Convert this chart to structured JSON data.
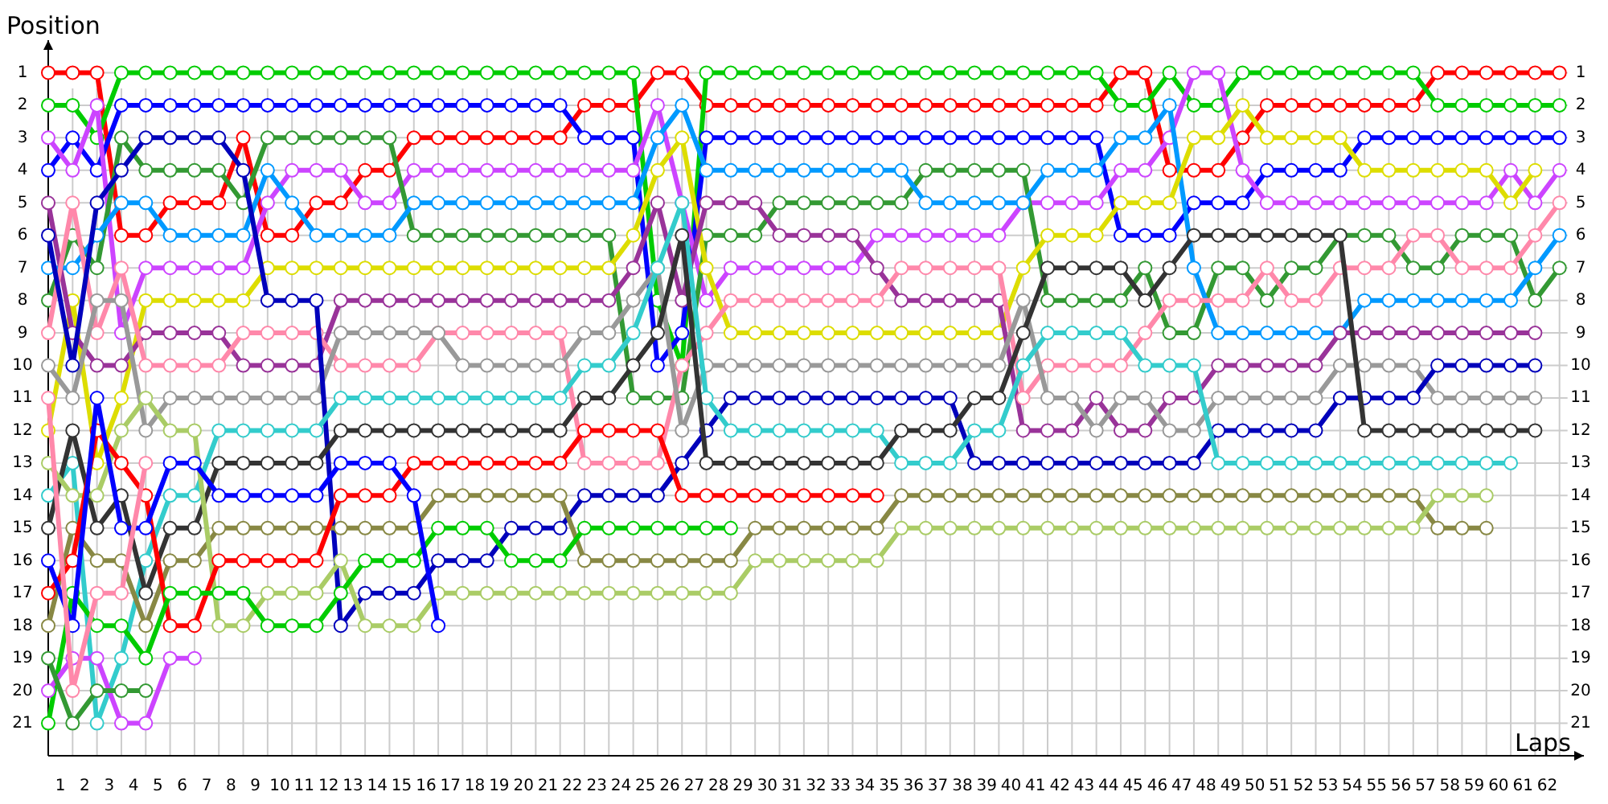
{
  "chart_data": {
    "type": "line",
    "xlabel": "Laps",
    "ylabel": "Position",
    "grid": true,
    "marker": "circle",
    "line_style": "solid",
    "xlim": [
      0,
      63
    ],
    "ylim": [
      22,
      0
    ],
    "y2lim": [
      22,
      0
    ],
    "yticks": [
      1,
      2,
      3,
      4,
      5,
      6,
      7,
      8,
      9,
      10,
      11,
      12,
      13,
      14,
      15,
      16,
      17,
      18,
      19,
      20,
      21
    ],
    "y2ticks": [
      1,
      2,
      3,
      4,
      5,
      6,
      7,
      8,
      9,
      10,
      11,
      12,
      13,
      14,
      15,
      16,
      17,
      18,
      19,
      20,
      21
    ],
    "xticks": [
      {
        "value": 0,
        "label": null
      },
      {
        "value": 0.5,
        "label": "1"
      },
      {
        "value": 1,
        "label": null
      },
      {
        "value": 1.5,
        "label": "2"
      },
      {
        "value": 2,
        "label": null
      },
      {
        "value": 2.5,
        "label": "3"
      },
      {
        "value": 3,
        "label": null
      },
      {
        "value": 3.5,
        "label": "4"
      },
      {
        "value": 4,
        "label": null
      },
      {
        "value": 4.5,
        "label": "5"
      },
      {
        "value": 5,
        "label": null
      },
      {
        "value": 5.5,
        "label": "6"
      },
      {
        "value": 6,
        "label": null
      },
      {
        "value": 6.5,
        "label": "7"
      },
      {
        "value": 7,
        "label": null
      },
      {
        "value": 7.5,
        "label": "8"
      },
      {
        "value": 8,
        "label": null
      },
      {
        "value": 8.5,
        "label": "9"
      },
      {
        "value": 9,
        "label": null
      },
      {
        "value": 9.5,
        "label": "10"
      },
      {
        "value": 10,
        "label": null
      },
      {
        "value": 10.5,
        "label": "11"
      },
      {
        "value": 11,
        "label": null
      },
      {
        "value": 11.5,
        "label": "12"
      },
      {
        "value": 12,
        "label": null
      },
      {
        "value": 12.5,
        "label": "13"
      },
      {
        "value": 13,
        "label": null
      },
      {
        "value": 13.5,
        "label": "14"
      },
      {
        "value": 14,
        "label": null
      },
      {
        "value": 14.5,
        "label": "15"
      },
      {
        "value": 15,
        "label": null
      },
      {
        "value": 15.5,
        "label": "16"
      },
      {
        "value": 16,
        "label": null
      },
      {
        "value": 16.5,
        "label": "17"
      },
      {
        "value": 17,
        "label": null
      },
      {
        "value": 17.5,
        "label": "18"
      },
      {
        "value": 18,
        "label": null
      },
      {
        "value": 18.5,
        "label": "19"
      },
      {
        "value": 19,
        "label": null
      },
      {
        "value": 19.5,
        "label": "20"
      },
      {
        "value": 20,
        "label": null
      },
      {
        "value": 20.5,
        "label": "21"
      },
      {
        "value": 21,
        "label": null
      },
      {
        "value": 21.5,
        "label": "22"
      },
      {
        "value": 22,
        "label": null
      },
      {
        "value": 22.5,
        "label": "23"
      },
      {
        "value": 23,
        "label": null
      },
      {
        "value": 23.5,
        "label": "24"
      },
      {
        "value": 24,
        "label": null
      },
      {
        "value": 24.5,
        "label": "25"
      },
      {
        "value": 25,
        "label": null
      },
      {
        "value": 25.5,
        "label": "26"
      },
      {
        "value": 26,
        "label": null
      },
      {
        "value": 26.5,
        "label": "27"
      },
      {
        "value": 27,
        "label": null
      },
      {
        "value": 27.5,
        "label": "28"
      },
      {
        "value": 28,
        "label": null
      },
      {
        "value": 28.5,
        "label": "29"
      },
      {
        "value": 29,
        "label": null
      },
      {
        "value": 29.5,
        "label": "30"
      },
      {
        "value": 30,
        "label": null
      },
      {
        "value": 30.5,
        "label": "31"
      },
      {
        "value": 31,
        "label": null
      },
      {
        "value": 31.5,
        "label": "32"
      },
      {
        "value": 32,
        "label": null
      },
      {
        "value": 32.5,
        "label": "33"
      },
      {
        "value": 33,
        "label": null
      },
      {
        "value": 33.5,
        "label": "34"
      },
      {
        "value": 34,
        "label": null
      },
      {
        "value": 34.5,
        "label": "35"
      },
      {
        "value": 35,
        "label": null
      },
      {
        "value": 35.5,
        "label": "36"
      },
      {
        "value": 36,
        "label": null
      },
      {
        "value": 36.5,
        "label": "37"
      },
      {
        "value": 37,
        "label": null
      },
      {
        "value": 37.5,
        "label": "38"
      },
      {
        "value": 38,
        "label": null
      },
      {
        "value": 38.5,
        "label": "39"
      },
      {
        "value": 39,
        "label": null
      },
      {
        "value": 39.5,
        "label": "40"
      },
      {
        "value": 40,
        "label": null
      },
      {
        "value": 40.5,
        "label": "41"
      },
      {
        "value": 41,
        "label": null
      },
      {
        "value": 41.5,
        "label": "42"
      },
      {
        "value": 42,
        "label": null
      },
      {
        "value": 42.5,
        "label": "43"
      },
      {
        "value": 43,
        "label": null
      },
      {
        "value": 43.5,
        "label": "44"
      },
      {
        "value": 44,
        "label": null
      },
      {
        "value": 44.5,
        "label": "45"
      },
      {
        "value": 45,
        "label": null
      },
      {
        "value": 45.5,
        "label": "46"
      },
      {
        "value": 46,
        "label": null
      },
      {
        "value": 46.5,
        "label": "47"
      },
      {
        "value": 47,
        "label": null
      },
      {
        "value": 47.5,
        "label": "48"
      },
      {
        "value": 48,
        "label": null
      },
      {
        "value": 48.5,
        "label": "49"
      },
      {
        "value": 49,
        "label": null
      },
      {
        "value": 49.5,
        "label": "50"
      },
      {
        "value": 50,
        "label": null
      },
      {
        "value": 50.5,
        "label": "51"
      },
      {
        "value": 51,
        "label": null
      },
      {
        "value": 51.5,
        "label": "52"
      },
      {
        "value": 52,
        "label": null
      },
      {
        "value": 52.5,
        "label": "53"
      },
      {
        "value": 53,
        "label": null
      },
      {
        "value": 53.5,
        "label": "54"
      },
      {
        "value": 54,
        "label": null
      },
      {
        "value": 54.5,
        "label": "55"
      },
      {
        "value": 55,
        "label": null
      },
      {
        "value": 55.5,
        "label": "56"
      },
      {
        "value": 56,
        "label": null
      },
      {
        "value": 56.5,
        "label": "57"
      },
      {
        "value": 57,
        "label": null
      },
      {
        "value": 57.5,
        "label": "58"
      },
      {
        "value": 58,
        "label": null
      },
      {
        "value": 58.5,
        "label": "59"
      },
      {
        "value": 59,
        "label": null
      },
      {
        "value": 59.5,
        "label": "60"
      },
      {
        "value": 60,
        "label": null
      },
      {
        "value": 60.5,
        "label": "61"
      },
      {
        "value": 61,
        "label": null
      },
      {
        "value": 61.5,
        "label": "62"
      },
      {
        "value": 62,
        "label": null
      }
    ],
    "x": [
      0,
      1,
      2,
      3,
      4,
      5,
      6,
      7,
      8,
      9,
      10,
      11,
      12,
      13,
      14,
      15,
      16,
      17,
      18,
      19,
      20,
      21,
      22,
      23,
      24,
      25,
      26,
      27,
      28,
      29,
      30,
      31,
      32,
      33,
      34,
      35,
      36,
      37,
      38,
      39,
      40,
      41,
      42,
      43,
      44,
      45,
      46,
      47,
      48,
      49,
      50,
      51,
      52,
      53,
      54,
      55,
      56,
      57,
      58,
      59,
      60,
      61,
      62
    ],
    "series": [
      {
        "color": "#ff0000",
        "values": [
          1,
          1,
          1,
          6,
          6,
          5,
          5,
          5,
          3,
          6,
          6,
          5,
          5,
          4,
          4,
          3,
          3,
          3,
          3,
          3,
          3,
          3,
          2,
          2,
          2,
          1,
          1,
          2,
          2,
          2,
          2,
          2,
          2,
          2,
          2,
          2,
          2,
          2,
          2,
          2,
          2,
          2,
          2,
          2,
          1,
          1,
          4,
          4,
          4,
          3,
          2,
          2,
          2,
          2,
          2,
          2,
          2,
          1,
          1,
          1,
          1,
          1,
          1
        ]
      },
      {
        "color": "#00cc00",
        "values": [
          2,
          2,
          3,
          1,
          1,
          1,
          1,
          1,
          1,
          1,
          1,
          1,
          1,
          1,
          1,
          1,
          1,
          1,
          1,
          1,
          1,
          1,
          1,
          1,
          1,
          8,
          10,
          1,
          1,
          1,
          1,
          1,
          1,
          1,
          1,
          1,
          1,
          1,
          1,
          1,
          1,
          1,
          1,
          1,
          2,
          2,
          1,
          2,
          2,
          1,
          1,
          1,
          1,
          1,
          1,
          1,
          1,
          2,
          2,
          2,
          2,
          2,
          2
        ]
      },
      {
        "color": "#0000ff",
        "values": [
          4,
          3,
          4,
          2,
          2,
          2,
          2,
          2,
          2,
          2,
          2,
          2,
          2,
          2,
          2,
          2,
          2,
          2,
          2,
          2,
          2,
          2,
          3,
          3,
          3,
          10,
          9,
          3,
          3,
          3,
          3,
          3,
          3,
          3,
          3,
          3,
          3,
          3,
          3,
          3,
          3,
          3,
          3,
          3,
          6,
          6,
          6,
          5,
          5,
          5,
          4,
          4,
          4,
          4,
          3,
          3,
          3,
          3,
          3,
          3,
          3,
          3,
          3
        ]
      },
      {
        "color": "#cc44ff",
        "values": [
          3,
          4,
          2,
          9,
          7,
          7,
          7,
          7,
          7,
          5,
          4,
          4,
          4,
          5,
          5,
          4,
          4,
          4,
          4,
          4,
          4,
          4,
          4,
          4,
          4,
          2,
          5,
          8,
          7,
          7,
          7,
          7,
          7,
          7,
          6,
          6,
          6,
          6,
          6,
          6,
          5,
          5,
          5,
          5,
          4,
          4,
          3,
          1,
          1,
          4,
          5,
          5,
          5,
          5,
          5,
          5,
          5,
          5,
          5,
          5,
          4,
          5,
          4
        ]
      },
      {
        "color": "#339933",
        "values": [
          8,
          6,
          7,
          3,
          4,
          4,
          4,
          4,
          5,
          3,
          3,
          3,
          3,
          3,
          3,
          6,
          6,
          6,
          6,
          6,
          6,
          6,
          6,
          6,
          11,
          11,
          11,
          6,
          6,
          6,
          5,
          5,
          5,
          5,
          5,
          5,
          4,
          4,
          4,
          4,
          4,
          8,
          8,
          8,
          8,
          7,
          9,
          9,
          7,
          7,
          8,
          7,
          7,
          6,
          6,
          6,
          7,
          7,
          6,
          6,
          6,
          8,
          7
        ]
      },
      {
        "color": "#0099ff",
        "values": [
          7,
          7,
          6,
          5,
          5,
          6,
          6,
          6,
          6,
          4,
          5,
          6,
          6,
          6,
          6,
          5,
          5,
          5,
          5,
          5,
          5,
          5,
          5,
          5,
          5,
          3,
          2,
          4,
          4,
          4,
          4,
          4,
          4,
          4,
          4,
          4,
          5,
          5,
          5,
          5,
          5,
          4,
          4,
          4,
          3,
          3,
          2,
          7,
          9,
          9,
          9,
          9,
          9,
          9,
          8,
          8,
          8,
          8,
          8,
          8,
          8,
          7,
          6
        ]
      },
      {
        "color": "#dddd00",
        "values": [
          12,
          8,
          13,
          11,
          8,
          8,
          8,
          8,
          8,
          7,
          7,
          7,
          7,
          7,
          7,
          7,
          7,
          7,
          7,
          7,
          7,
          7,
          7,
          7,
          6,
          4,
          3,
          7,
          9,
          9,
          9,
          9,
          9,
          9,
          9,
          9,
          9,
          9,
          9,
          9,
          7,
          6,
          6,
          6,
          5,
          5,
          5,
          3,
          3,
          2,
          3,
          3,
          3,
          3,
          4,
          4,
          4,
          4,
          4,
          4,
          5,
          4,
          null
        ]
      },
      {
        "color": "#993399",
        "values": [
          5,
          9,
          10,
          10,
          9,
          9,
          9,
          9,
          10,
          10,
          10,
          10,
          8,
          8,
          8,
          8,
          8,
          8,
          8,
          8,
          8,
          8,
          8,
          8,
          7,
          5,
          8,
          5,
          5,
          5,
          6,
          6,
          6,
          6,
          7,
          8,
          8,
          8,
          8,
          8,
          12,
          12,
          12,
          11,
          12,
          12,
          11,
          11,
          10,
          10,
          10,
          10,
          10,
          9,
          9,
          9,
          9,
          9,
          9,
          9,
          9,
          9,
          null
        ]
      },
      {
        "color": "#ff88aa",
        "values": [
          9,
          5,
          9,
          7,
          10,
          10,
          10,
          10,
          9,
          9,
          9,
          9,
          10,
          10,
          10,
          10,
          9,
          9,
          9,
          9,
          9,
          9,
          13,
          13,
          13,
          13,
          10,
          9,
          8,
          8,
          8,
          8,
          8,
          8,
          8,
          7,
          7,
          7,
          7,
          7,
          11,
          10,
          10,
          10,
          10,
          9,
          8,
          8,
          8,
          8,
          7,
          8,
          8,
          7,
          7,
          7,
          6,
          6,
          7,
          7,
          7,
          6,
          5
        ]
      },
      {
        "color": "#999999",
        "values": [
          10,
          11,
          8,
          8,
          12,
          11,
          11,
          11,
          11,
          11,
          11,
          11,
          9,
          9,
          9,
          9,
          9,
          10,
          10,
          10,
          10,
          10,
          9,
          9,
          8,
          7,
          12,
          10,
          10,
          10,
          10,
          10,
          10,
          10,
          10,
          10,
          10,
          10,
          10,
          10,
          8,
          11,
          11,
          12,
          11,
          11,
          12,
          12,
          11,
          11,
          11,
          11,
          11,
          10,
          10,
          10,
          10,
          11,
          11,
          11,
          11,
          11,
          null
        ]
      },
      {
        "color": "#0000bb",
        "values": [
          6,
          10,
          5,
          4,
          3,
          3,
          3,
          3,
          4,
          8,
          8,
          8,
          18,
          17,
          17,
          17,
          16,
          16,
          16,
          15,
          15,
          15,
          14,
          14,
          14,
          14,
          13,
          12,
          11,
          11,
          11,
          11,
          11,
          11,
          11,
          11,
          11,
          11,
          13,
          13,
          13,
          13,
          13,
          13,
          13,
          13,
          13,
          13,
          12,
          12,
          12,
          12,
          12,
          11,
          11,
          11,
          11,
          10,
          10,
          10,
          10,
          10,
          null
        ]
      },
      {
        "color": "#33cccc",
        "values": [
          14,
          13,
          21,
          19,
          16,
          14,
          14,
          12,
          12,
          12,
          12,
          12,
          11,
          11,
          11,
          11,
          11,
          11,
          11,
          11,
          11,
          11,
          10,
          10,
          9,
          7,
          5,
          11,
          12,
          12,
          12,
          12,
          12,
          12,
          12,
          13,
          13,
          13,
          12,
          12,
          10,
          9,
          9,
          9,
          9,
          10,
          10,
          10,
          13,
          13,
          13,
          13,
          13,
          13,
          13,
          13,
          13,
          13,
          13,
          13,
          13,
          null,
          null
        ]
      },
      {
        "color": "#333333",
        "values": [
          15,
          12,
          15,
          14,
          17,
          15,
          15,
          13,
          13,
          13,
          13,
          13,
          12,
          12,
          12,
          12,
          12,
          12,
          12,
          12,
          12,
          12,
          11,
          11,
          10,
          9,
          6,
          13,
          13,
          13,
          13,
          13,
          13,
          13,
          13,
          12,
          12,
          12,
          11,
          11,
          9,
          7,
          7,
          7,
          7,
          8,
          7,
          6,
          6,
          6,
          6,
          6,
          6,
          6,
          12,
          12,
          12,
          12,
          12,
          12,
          12,
          12,
          null
        ]
      },
      {
        "color": "#888844",
        "values": [
          18,
          15,
          16,
          16,
          18,
          16,
          16,
          15,
          15,
          15,
          15,
          15,
          15,
          15,
          15,
          15,
          14,
          14,
          14,
          14,
          14,
          14,
          16,
          16,
          16,
          16,
          16,
          16,
          16,
          15,
          15,
          15,
          15,
          15,
          15,
          14,
          14,
          14,
          14,
          14,
          14,
          14,
          14,
          14,
          14,
          14,
          14,
          14,
          14,
          14,
          14,
          14,
          14,
          14,
          14,
          14,
          14,
          15,
          15,
          15,
          null,
          null,
          null
        ]
      },
      {
        "color": "#aacc66",
        "values": [
          13,
          14,
          14,
          12,
          11,
          12,
          12,
          18,
          18,
          17,
          17,
          17,
          16,
          18,
          18,
          18,
          17,
          17,
          17,
          17,
          17,
          17,
          17,
          17,
          17,
          17,
          17,
          17,
          17,
          16,
          16,
          16,
          16,
          16,
          16,
          15,
          15,
          15,
          15,
          15,
          15,
          15,
          15,
          15,
          15,
          15,
          15,
          15,
          15,
          15,
          15,
          15,
          15,
          15,
          15,
          15,
          15,
          14,
          14,
          14,
          null,
          null,
          null
        ]
      },
      {
        "color": "#ff0000",
        "values": [
          17,
          16,
          12,
          13,
          14,
          18,
          18,
          16,
          16,
          16,
          16,
          16,
          14,
          14,
          14,
          13,
          13,
          13,
          13,
          13,
          13,
          13,
          12,
          12,
          12,
          12,
          14,
          14,
          14,
          14,
          14,
          14,
          14,
          14,
          14,
          null,
          null,
          null,
          null,
          null,
          null,
          null,
          null,
          null,
          null,
          null,
          null,
          null,
          null,
          null,
          null,
          null,
          null,
          null,
          null,
          null,
          null,
          null,
          null,
          null,
          null,
          null,
          null
        ]
      },
      {
        "color": "#00cc00",
        "values": [
          21,
          17,
          18,
          18,
          19,
          17,
          17,
          17,
          17,
          18,
          18,
          18,
          17,
          16,
          16,
          16,
          15,
          15,
          15,
          16,
          16,
          16,
          15,
          15,
          15,
          15,
          15,
          15,
          15,
          null,
          null,
          null,
          null,
          null,
          null,
          null,
          null,
          null,
          null,
          null,
          null,
          null,
          null,
          null,
          null,
          null,
          null,
          null,
          null,
          null,
          null,
          null,
          null,
          null,
          null,
          null,
          null,
          null,
          null,
          null,
          null,
          null,
          null
        ]
      },
      {
        "color": "#0000ff",
        "values": [
          16,
          18,
          11,
          15,
          15,
          13,
          13,
          14,
          14,
          14,
          14,
          14,
          13,
          13,
          13,
          14,
          18,
          null,
          null,
          null,
          null,
          null,
          null,
          null,
          null,
          null,
          null,
          null,
          null,
          null,
          null,
          null,
          null,
          null,
          null,
          null,
          null,
          null,
          null,
          null,
          null,
          null,
          null,
          null,
          null,
          null,
          null,
          null,
          null,
          null,
          null,
          null,
          null,
          null,
          null,
          null,
          null,
          null,
          null,
          null,
          null,
          null,
          null
        ]
      },
      {
        "color": "#cc44ff",
        "values": [
          20,
          19,
          19,
          21,
          21,
          19,
          19,
          null,
          null,
          null,
          null,
          null,
          null,
          null,
          null,
          null,
          null,
          null,
          null,
          null,
          null,
          null,
          null,
          null,
          null,
          null,
          null,
          null,
          null,
          null,
          null,
          null,
          null,
          null,
          null,
          null,
          null,
          null,
          null,
          null,
          null,
          null,
          null,
          null,
          null,
          null,
          null,
          null,
          null,
          null,
          null,
          null,
          null,
          null,
          null,
          null,
          null,
          null,
          null,
          null,
          null,
          null,
          null
        ]
      },
      {
        "color": "#339933",
        "values": [
          19,
          21,
          20,
          20,
          20,
          null,
          null,
          null,
          null,
          null,
          null,
          null,
          null,
          null,
          null,
          null,
          null,
          null,
          null,
          null,
          null,
          null,
          null,
          null,
          null,
          null,
          null,
          null,
          null,
          null,
          null,
          null,
          null,
          null,
          null,
          null,
          null,
          null,
          null,
          null,
          null,
          null,
          null,
          null,
          null,
          null,
          null,
          null,
          null,
          null,
          null,
          null,
          null,
          null,
          null,
          null,
          null,
          null,
          null,
          null,
          null,
          null,
          null
        ]
      },
      {
        "color": "#ff88aa",
        "values": [
          11,
          20,
          17,
          17,
          13,
          null,
          null,
          null,
          null,
          null,
          null,
          null,
          null,
          null,
          null,
          null,
          null,
          null,
          null,
          null,
          null,
          null,
          null,
          null,
          null,
          null,
          null,
          null,
          null,
          null,
          null,
          null,
          null,
          null,
          null,
          null,
          null,
          null,
          null,
          null,
          null,
          null,
          null,
          null,
          null,
          null,
          null,
          null,
          null,
          null,
          null,
          null,
          null,
          null,
          null,
          null,
          null,
          null,
          null,
          null,
          null,
          null,
          null
        ]
      }
    ]
  }
}
